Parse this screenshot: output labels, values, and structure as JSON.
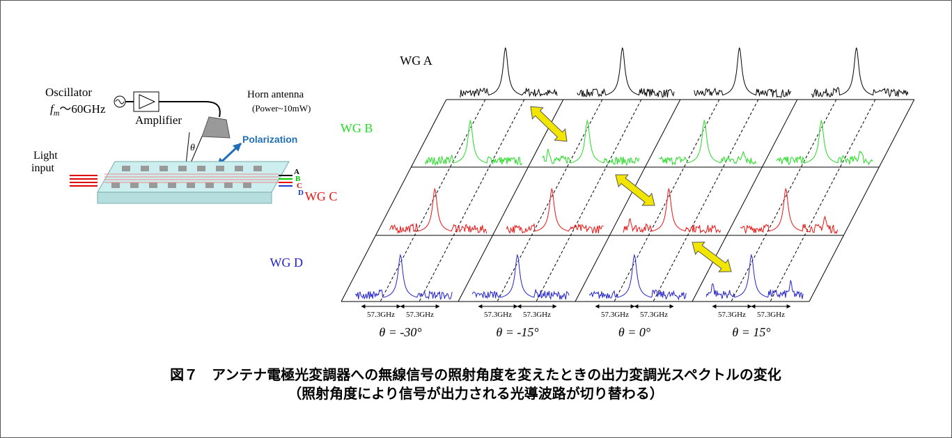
{
  "setup": {
    "oscillator": "Oscillator",
    "frequency": {
      "symbol": "f",
      "subscript": "m",
      "text": "～60GHz"
    },
    "amplifier": "Amplifier",
    "horn": "Horn antenna",
    "power": "(Power~10mW)",
    "polarization": "Polarization",
    "light_input": [
      "Light",
      "input"
    ],
    "angle": "θ",
    "outputs": [
      "A",
      "B",
      "C",
      "D"
    ]
  },
  "spectra": {
    "rows": [
      "WG A",
      "WG B",
      "WG C",
      "WG D"
    ],
    "columns": [
      {
        "spacing": [
          "57.3GHz",
          "57.3GHz"
        ],
        "angle": "θ = -30°"
      },
      {
        "spacing": [
          "57.3GHz",
          "57.3GHz"
        ],
        "angle": "θ = -15°"
      },
      {
        "spacing": [
          "57.3GHz",
          "57.3GHz"
        ],
        "angle": "θ = 0°"
      },
      {
        "spacing": [
          "57.3GHz",
          "57.3GHz"
        ],
        "angle": "θ = 15°"
      }
    ]
  },
  "caption": [
    "図７　アンテナ電極光変調器への無線信号の照射角度を変えたときの出力変調光スペクトルの変化",
    "（照射角度により信号が出力される光導波路が切り替わる）"
  ]
}
